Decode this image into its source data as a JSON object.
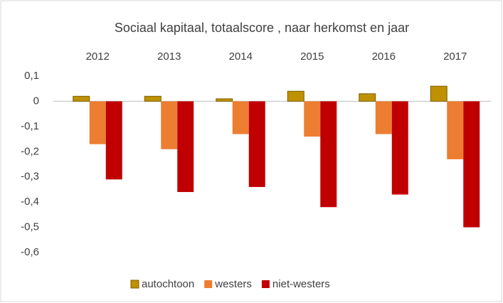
{
  "chart_data": {
    "type": "bar",
    "title": "Sociaal kapitaal, totaalscore , naar herkomst en jaar",
    "categories": [
      "2012",
      "2013",
      "2014",
      "2015",
      "2016",
      "2017"
    ],
    "series": [
      {
        "name": "autochtoon",
        "color": "#bf9000",
        "values": [
          0.02,
          0.02,
          0.01,
          0.04,
          0.03,
          0.06
        ]
      },
      {
        "name": "westers",
        "color": "#ed7d31",
        "values": [
          -0.17,
          -0.19,
          -0.13,
          -0.14,
          -0.13,
          -0.23
        ]
      },
      {
        "name": "niet-westers",
        "color": "#c00000",
        "values": [
          -0.31,
          -0.36,
          -0.34,
          -0.42,
          -0.37,
          -0.5
        ]
      }
    ],
    "ylim": [
      -0.6,
      0.1
    ],
    "yticks": [
      {
        "value": 0.1,
        "label": "0,1"
      },
      0,
      {
        "value": -0.1,
        "label": "-0,1"
      },
      {
        "value": -0.2,
        "label": "-0,2"
      },
      {
        "value": -0.3,
        "label": "-0,3"
      },
      {
        "value": -0.4,
        "label": "-0,4"
      },
      {
        "value": -0.5,
        "label": "-0,5"
      },
      {
        "value": -0.6,
        "label": "-0,6"
      }
    ],
    "grid": false,
    "legend": "bottom"
  }
}
